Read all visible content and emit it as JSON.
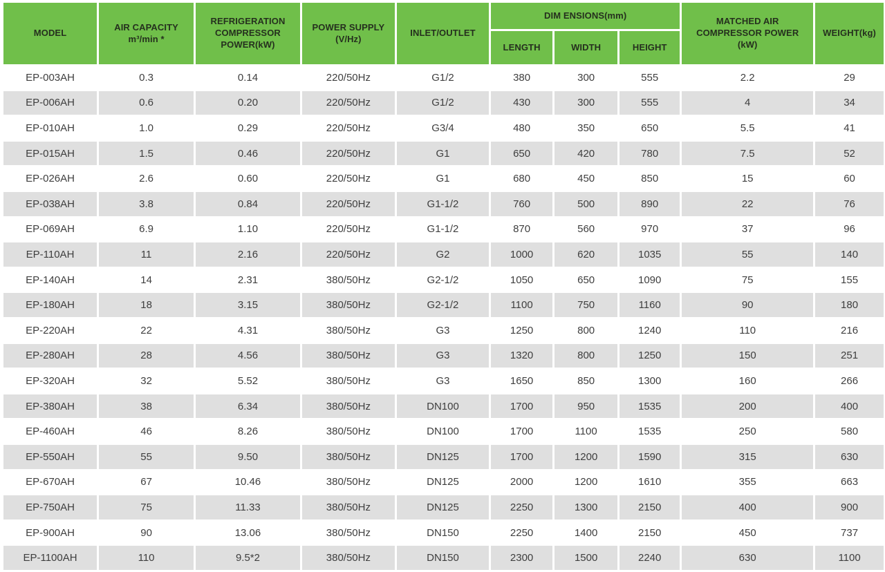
{
  "colors": {
    "header_bg": "#70bf4a",
    "header_text": "#25301e",
    "stripe_bg": "#dfdfdf",
    "body_text": "#3e3e3e",
    "gutter": "#ffffff"
  },
  "table": {
    "columns": [
      {
        "id": "model",
        "label": "MODEL"
      },
      {
        "id": "air-capacity",
        "label": "AIR CAPACITY\nm³/min *"
      },
      {
        "id": "refrigeration-compressor-power",
        "label": "REFRIGERATION\nCOMPRESSOR\nPOWER(kW)"
      },
      {
        "id": "power-supply",
        "label": "POWER SUPPLY\n(V/Hz)"
      },
      {
        "id": "inlet-outlet",
        "label": "INLET/OUTLET"
      },
      {
        "id": "dimensions",
        "label": "DIM ENSIONS(mm)",
        "subcolumns": [
          {
            "id": "length",
            "label": "LENGTH"
          },
          {
            "id": "width",
            "label": "WIDTH"
          },
          {
            "id": "height",
            "label": "HEIGHT"
          }
        ]
      },
      {
        "id": "matched-air-compressor-power",
        "label": "MATCHED AIR\nCOMPRESSOR POWER\n(kW)"
      },
      {
        "id": "weight",
        "label": "WEIGHT(kg)"
      }
    ],
    "cell_column_ids": [
      "model",
      "air-capacity",
      "refrigeration-compressor-power",
      "power-supply",
      "inlet-outlet",
      "length",
      "width",
      "height",
      "matched-air-compressor-power",
      "weight"
    ],
    "rows": [
      [
        "EP-003AH",
        "0.3",
        "0.14",
        "220/50Hz",
        "G1/2",
        "380",
        "300",
        "555",
        "2.2",
        "29"
      ],
      [
        "EP-006AH",
        "0.6",
        "0.20",
        "220/50Hz",
        "G1/2",
        "430",
        "300",
        "555",
        "4",
        "34"
      ],
      [
        "EP-010AH",
        "1.0",
        "0.29",
        "220/50Hz",
        "G3/4",
        "480",
        "350",
        "650",
        "5.5",
        "41"
      ],
      [
        "EP-015AH",
        "1.5",
        "0.46",
        "220/50Hz",
        "G1",
        "650",
        "420",
        "780",
        "7.5",
        "52"
      ],
      [
        "EP-026AH",
        "2.6",
        "0.60",
        "220/50Hz",
        "G1",
        "680",
        "450",
        "850",
        "15",
        "60"
      ],
      [
        "EP-038AH",
        "3.8",
        "0.84",
        "220/50Hz",
        "G1-1/2",
        "760",
        "500",
        "890",
        "22",
        "76"
      ],
      [
        "EP-069AH",
        "6.9",
        "1.10",
        "220/50Hz",
        "G1-1/2",
        "870",
        "560",
        "970",
        "37",
        "96"
      ],
      [
        "EP-110AH",
        "11",
        "2.16",
        "220/50Hz",
        "G2",
        "1000",
        "620",
        "1035",
        "55",
        "140"
      ],
      [
        "EP-140AH",
        "14",
        "2.31",
        "380/50Hz",
        "G2-1/2",
        "1050",
        "650",
        "1090",
        "75",
        "155"
      ],
      [
        "EP-180AH",
        "18",
        "3.15",
        "380/50Hz",
        "G2-1/2",
        "1100",
        "750",
        "1160",
        "90",
        "180"
      ],
      [
        "EP-220AH",
        "22",
        "4.31",
        "380/50Hz",
        "G3",
        "1250",
        "800",
        "1240",
        "110",
        "216"
      ],
      [
        "EP-280AH",
        "28",
        "4.56",
        "380/50Hz",
        "G3",
        "1320",
        "800",
        "1250",
        "150",
        "251"
      ],
      [
        "EP-320AH",
        "32",
        "5.52",
        "380/50Hz",
        "G3",
        "1650",
        "850",
        "1300",
        "160",
        "266"
      ],
      [
        "EP-380AH",
        "38",
        "6.34",
        "380/50Hz",
        "DN100",
        "1700",
        "950",
        "1535",
        "200",
        "400"
      ],
      [
        "EP-460AH",
        "46",
        "8.26",
        "380/50Hz",
        "DN100",
        "1700",
        "1100",
        "1535",
        "250",
        "580"
      ],
      [
        "EP-550AH",
        "55",
        "9.50",
        "380/50Hz",
        "DN125",
        "1700",
        "1200",
        "1590",
        "315",
        "630"
      ],
      [
        "EP-670AH",
        "67",
        "10.46",
        "380/50Hz",
        "DN125",
        "2000",
        "1200",
        "1610",
        "355",
        "663"
      ],
      [
        "EP-750AH",
        "75",
        "11.33",
        "380/50Hz",
        "DN125",
        "2250",
        "1300",
        "2150",
        "400",
        "900"
      ],
      [
        "EP-900AH",
        "90",
        "13.06",
        "380/50Hz",
        "DN150",
        "2250",
        "1400",
        "2150",
        "450",
        "737"
      ],
      [
        "EP-1100AH",
        "110",
        "9.5*2",
        "380/50Hz",
        "DN150",
        "2300",
        "1500",
        "2240",
        "630",
        "1100"
      ]
    ]
  }
}
